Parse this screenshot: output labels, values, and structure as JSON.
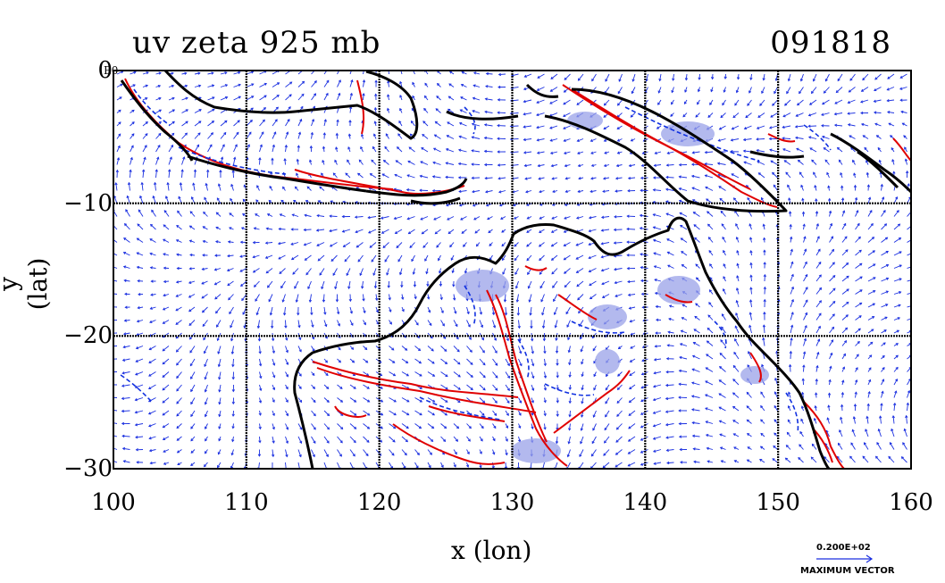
{
  "title": {
    "left": "uv zeta 925 mb",
    "right": "091818"
  },
  "axes": {
    "xlabel": "x (lon)",
    "ylabel": "y (lat)",
    "x_ticks": [
      "100",
      "110",
      "120",
      "130",
      "140",
      "150",
      "160"
    ],
    "y_ticks": [
      "0",
      "−10",
      "−20",
      "−30"
    ],
    "unit_tag": "E0",
    "xlim": [
      100,
      160
    ],
    "ylim": [
      -30,
      0
    ]
  },
  "legend": {
    "value": "0.200E+02",
    "label": "MAXIMUM VECTOR"
  },
  "colors": {
    "coast": "#000000",
    "positive_contour": "#e00000",
    "negative_contour": "#1030e0",
    "shade": "#9aa2e8",
    "vector": "#1a2fe0"
  },
  "map_features": {
    "grid": true,
    "field": "wind vectors with vorticity contours",
    "region": "Maritime Continent and northern Australia"
  }
}
